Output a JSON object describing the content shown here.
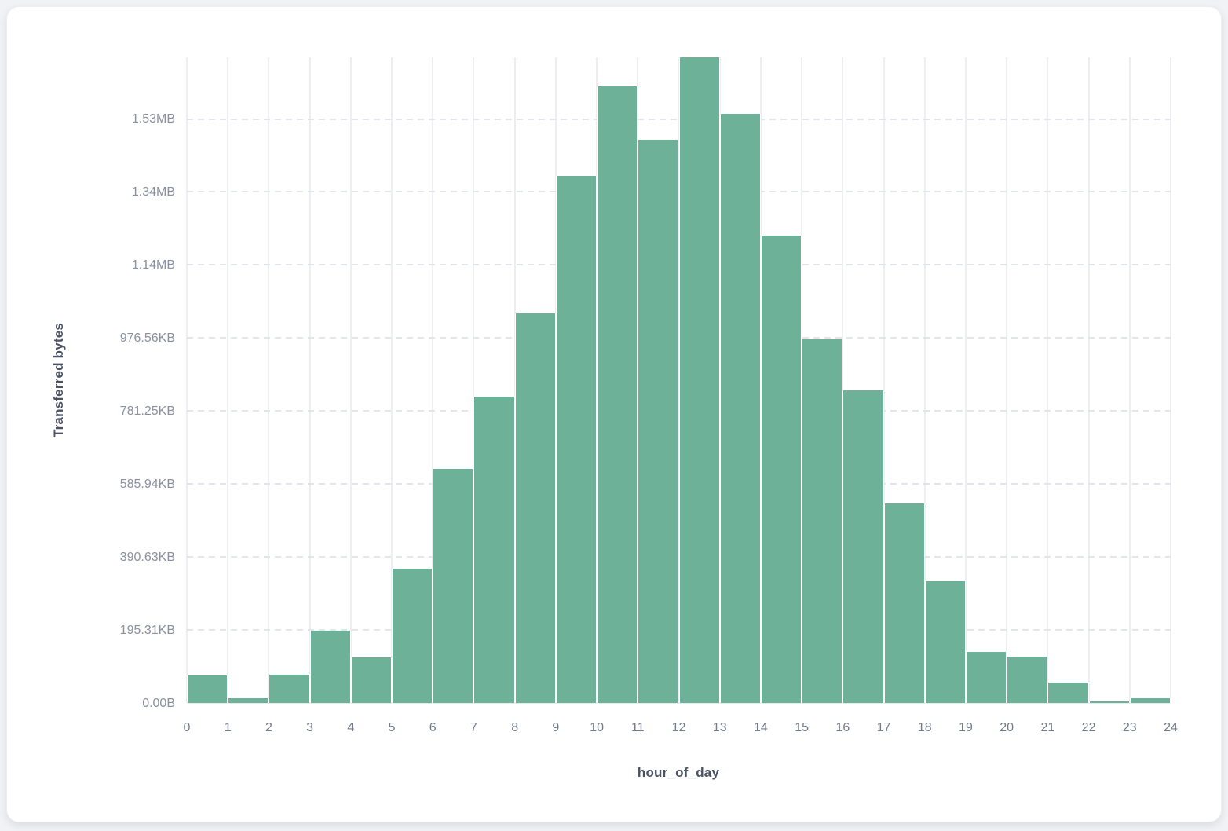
{
  "chart_data": {
    "type": "bar",
    "title": "",
    "xlabel": "hour_of_day",
    "ylabel": "Transferred bytes",
    "categories": [
      0,
      1,
      2,
      3,
      4,
      5,
      6,
      7,
      8,
      9,
      10,
      11,
      12,
      13,
      14,
      15,
      16,
      17,
      18,
      19,
      20,
      21,
      22,
      23
    ],
    "values": [
      75000,
      14000,
      78500,
      197000,
      125500,
      367000,
      642000,
      839000,
      1068000,
      1443000,
      1690000,
      1544000,
      1769000,
      1615000,
      1280000,
      997000,
      856000,
      546000,
      333000,
      140000,
      126000,
      56000,
      4000,
      12000
    ],
    "values_unit": "bytes",
    "xlim": [
      0,
      24
    ],
    "ylim": [
      0,
      1769000
    ],
    "x_ticks": [
      {
        "label": "0",
        "value": 0
      },
      {
        "label": "1",
        "value": 1
      },
      {
        "label": "2",
        "value": 2
      },
      {
        "label": "3",
        "value": 3
      },
      {
        "label": "4",
        "value": 4
      },
      {
        "label": "5",
        "value": 5
      },
      {
        "label": "6",
        "value": 6
      },
      {
        "label": "7",
        "value": 7
      },
      {
        "label": "8",
        "value": 8
      },
      {
        "label": "9",
        "value": 9
      },
      {
        "label": "10",
        "value": 10
      },
      {
        "label": "11",
        "value": 11
      },
      {
        "label": "12",
        "value": 12
      },
      {
        "label": "13",
        "value": 13
      },
      {
        "label": "14",
        "value": 14
      },
      {
        "label": "15",
        "value": 15
      },
      {
        "label": "16",
        "value": 16
      },
      {
        "label": "17",
        "value": 17
      },
      {
        "label": "18",
        "value": 18
      },
      {
        "label": "19",
        "value": 19
      },
      {
        "label": "20",
        "value": 20
      },
      {
        "label": "21",
        "value": 21
      },
      {
        "label": "22",
        "value": 22
      },
      {
        "label": "23",
        "value": 23
      },
      {
        "label": "24",
        "value": 24
      }
    ],
    "y_ticks": [
      {
        "label": "0.00B",
        "bytes": 0
      },
      {
        "label": "195.31KB",
        "bytes": 200000
      },
      {
        "label": "390.63KB",
        "bytes": 400000
      },
      {
        "label": "585.94KB",
        "bytes": 600000
      },
      {
        "label": "781.25KB",
        "bytes": 800000
      },
      {
        "label": "976.56KB",
        "bytes": 1000000
      },
      {
        "label": "1.14MB",
        "bytes": 1200000
      },
      {
        "label": "1.34MB",
        "bytes": 1400000
      },
      {
        "label": "1.53MB",
        "bytes": 1600000
      }
    ],
    "legend": "none",
    "grid": {
      "horizontal": "dashed",
      "vertical": "solid"
    }
  },
  "colors": {
    "page_bg": "#f1f2f5",
    "card_bg": "#ffffff",
    "card_border": "#eceef1",
    "bar_color": "#6db199",
    "grid_v": "#eceef2",
    "grid_h": "#e2e5eb",
    "baseline": "#e8eaee",
    "y_tick_color": "#8a90a0",
    "x_tick_color": "#737b8b",
    "title_color": "#4a5264"
  }
}
